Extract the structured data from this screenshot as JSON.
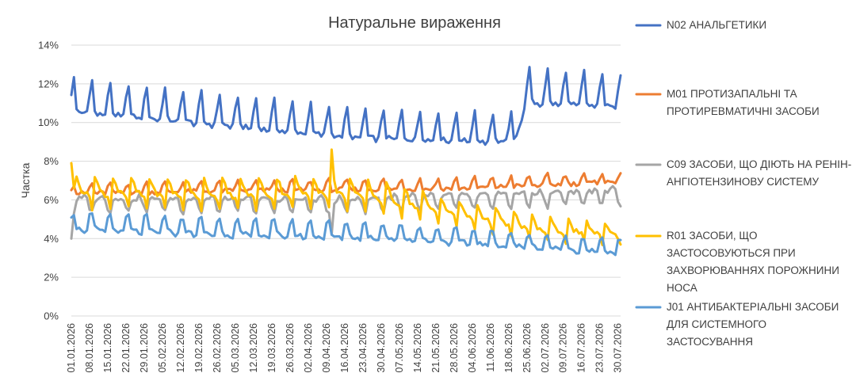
{
  "chart_data": {
    "type": "line",
    "title": "Натуральне вираження",
    "xlabel": "",
    "ylabel": "Частка",
    "ylim": [
      0,
      14
    ],
    "yticks": [
      "0%",
      "2%",
      "4%",
      "6%",
      "8%",
      "10%",
      "12%",
      "14%"
    ],
    "grid": true,
    "legend_position": "right",
    "x_start": "01.01.2026",
    "x_end": "31.07.2026",
    "x_tick_labels": [
      "01.01.2026",
      "08.01.2026",
      "15.01.2026",
      "22.01.2026",
      "29.01.2026",
      "05.02.2026",
      "12.02.2026",
      "19.02.2026",
      "26.02.2026",
      "05.03.2026",
      "12.03.2026",
      "19.03.2026",
      "26.03.2026",
      "02.04.2026",
      "09.04.2026",
      "16.04.2026",
      "23.04.2026",
      "30.04.2026",
      "07.05.2026",
      "14.05.2026",
      "21.05.2026",
      "28.05.2026",
      "04.06.2026",
      "11.06.2026",
      "18.06.2026",
      "25.06.2026",
      "02.07.2026",
      "09.07.2026",
      "16.07.2026",
      "23.07.2026",
      "30.07.2026"
    ],
    "series": [
      {
        "name": "N02 АНАЛЬГЕТИКИ",
        "legend_lines": [
          "N02 АНАЛЬГЕТИКИ"
        ],
        "color": "#4472c4",
        "weekly_pattern": [
          11.5,
          12.3,
          10.7,
          10.6,
          10.6,
          10.5,
          10.6
        ],
        "level_trend": [
          [
            0,
            1.0
          ],
          [
            110,
            0.87
          ],
          [
            170,
            0.85
          ],
          [
            175,
            1.04
          ],
          [
            211,
            1.02
          ]
        ],
        "events": []
      },
      {
        "name": "M01 ПРОТИЗАПАЛЬНІ ТА ПРОТИРЕВМАТИЧНІ ЗАСОБИ",
        "legend_lines": [
          "M01 ПРОТИЗАПАЛЬНІ ТА",
          "ПРОТИРЕВМАТИЧНІ ЗАСОБИ"
        ],
        "color": "#ed7d31",
        "weekly_pattern": [
          6.9,
          7.1,
          6.6,
          6.6,
          6.6,
          6.6,
          6.6
        ],
        "level_trend": [
          [
            0,
            0.96
          ],
          [
            60,
            0.98
          ],
          [
            150,
            1.0
          ],
          [
            211,
            1.05
          ]
        ],
        "events": []
      },
      {
        "name": "C09 ЗАСОБИ, ЩО ДІЮТЬ НА РЕНІН-АНГІОТЕНЗИНОВУ СИСТЕМУ",
        "legend_lines": [
          "C09 ЗАСОБИ, ЩО ДІЮТЬ НА РЕНІН-",
          "АНГІОТЕНЗИНОВУ СИСТЕМУ"
        ],
        "color": "#a5a5a5",
        "weekly_pattern": [
          5.7,
          5.5,
          6.1,
          6.2,
          6.2,
          6.3,
          6.2
        ],
        "level_trend": [
          [
            0,
            0.98
          ],
          [
            100,
            0.97
          ],
          [
            211,
            1.05
          ]
        ],
        "events": [
          [
            0,
            4.0
          ],
          [
            1,
            5.3
          ],
          [
            100,
            4.2
          ],
          [
            101,
            5.8
          ]
        ]
      },
      {
        "name": "R01 ЗАСОБИ, ЩО ЗАСТОСОВУЮТЬСЯ ПРИ ЗАХВОРЮВАННЯХ ПОРОЖНИНИ НОСА",
        "legend_lines": [
          "R01 ЗАСОБИ, ЩО",
          "ЗАСТОСОВУЮТЬСЯ ПРИ",
          "ЗАХВОРЮВАННЯХ ПОРОЖНИНИ",
          "НОСА"
        ],
        "color": "#ffc000",
        "weekly_pattern": [
          6.2,
          5.6,
          7.2,
          6.9,
          6.5,
          6.4,
          6.3
        ],
        "level_trend": [
          [
            0,
            1.0
          ],
          [
            60,
            0.98
          ],
          [
            100,
            1.0
          ],
          [
            120,
            0.95
          ],
          [
            150,
            0.82
          ],
          [
            180,
            0.7
          ],
          [
            211,
            0.66
          ]
        ],
        "events": [
          [
            0,
            7.9
          ],
          [
            1,
            6.6
          ],
          [
            100,
            8.6
          ],
          [
            101,
            7.0
          ]
        ]
      },
      {
        "name": "J01 АНТИБАКТЕРІАЛЬНІ ЗАСОБИ ДЛЯ СИСТЕМНОГО ЗАСТОСУВАННЯ",
        "legend_lines": [
          "J01 АНТИБАКТЕРІАЛЬНІ ЗАСОБИ",
          "ДЛЯ СИСТЕМНОГО",
          "ЗАСТОСУВАННЯ"
        ],
        "color": "#5b9bd5",
        "weekly_pattern": [
          5.2,
          5.3,
          4.6,
          4.5,
          4.5,
          4.4,
          4.4
        ],
        "level_trend": [
          [
            0,
            1.0
          ],
          [
            60,
            0.94
          ],
          [
            120,
            0.9
          ],
          [
            211,
            0.73
          ]
        ],
        "events": [
          [
            100,
            4.2
          ]
        ]
      }
    ]
  }
}
